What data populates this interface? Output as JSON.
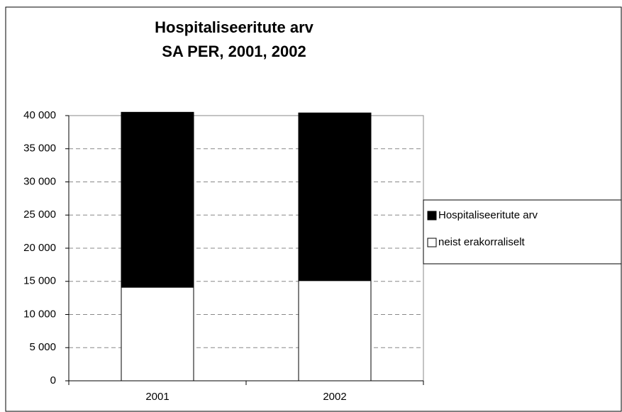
{
  "chart_data": {
    "type": "bar",
    "title": [
      "Hospitaliseeritute arv",
      "SA PER, 2001, 2002"
    ],
    "categories": [
      "2001",
      "2002"
    ],
    "series": [
      {
        "name": "Hospitaliseeritute arv",
        "color": "#000000",
        "values": [
          40500,
          40400
        ]
      },
      {
        "name": "neist erakorraliselt",
        "color": "#ffffff",
        "values": [
          14100,
          15100
        ]
      }
    ],
    "ylim": [
      0,
      40000
    ],
    "yticks": [
      0,
      {
        "value": 5000,
        "label": "5 000"
      },
      {
        "value": 10000,
        "label": "10 000"
      },
      {
        "value": 15000,
        "label": "15 000"
      },
      {
        "value": 20000,
        "label": "20 000"
      },
      {
        "value": 25000,
        "label": "25 000"
      },
      {
        "value": 30000,
        "label": "30 000"
      },
      {
        "value": 35000,
        "label": "35 000"
      },
      {
        "value": 40000,
        "label": "40 000"
      }
    ],
    "grid": true,
    "legend": "right"
  }
}
